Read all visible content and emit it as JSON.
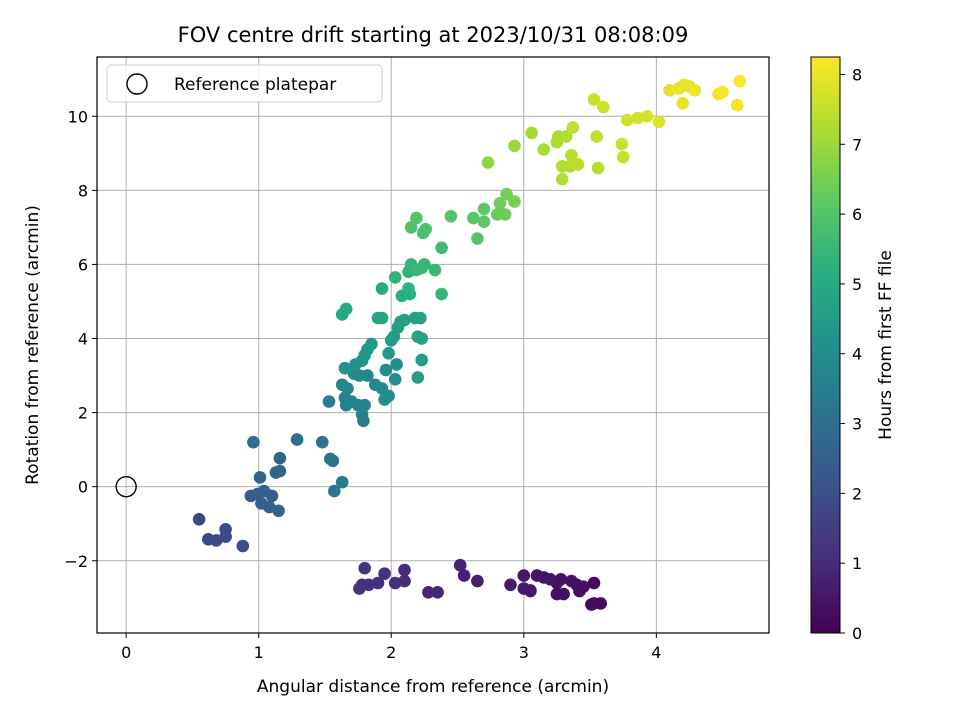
{
  "chart_data": {
    "type": "scatter",
    "title": "FOV centre drift starting at 2023/10/31 08:08:09",
    "xlabel": "Angular distance from reference (arcmin)",
    "ylabel": "Rotation from reference (arcmin)",
    "xlim": [
      -0.22,
      4.85
    ],
    "ylim": [
      -3.95,
      11.6
    ],
    "xticks": [
      0,
      1,
      2,
      3,
      4
    ],
    "yticks": [
      -2,
      0,
      2,
      4,
      6,
      8,
      10
    ],
    "xtick_labels": [
      "0",
      "1",
      "2",
      "3",
      "4"
    ],
    "ytick_labels": [
      "−2",
      "0",
      "2",
      "4",
      "6",
      "8",
      "10"
    ],
    "grid": true,
    "legend": {
      "placement": "top-left",
      "entries": [
        {
          "label": "Reference platepar",
          "marker": "open-circle"
        }
      ]
    },
    "reference_point": {
      "x": 0,
      "y": 0
    },
    "colorbar": {
      "label": "Hours from first FF file",
      "colormap": "viridis",
      "range": [
        0,
        8.25
      ],
      "ticks": [
        0,
        1,
        2,
        3,
        4,
        5,
        6,
        7,
        8
      ],
      "tick_labels": [
        "0",
        "1",
        "2",
        "3",
        "4",
        "5",
        "6",
        "7",
        "8"
      ]
    },
    "series": [
      {
        "points": [
          [
            3.53,
            -3.15,
            0.2
          ],
          [
            3.58,
            -3.15,
            0.2
          ],
          [
            3.51,
            -3.18,
            0.25
          ],
          [
            3.42,
            -2.82,
            0.3
          ],
          [
            3.4,
            -2.65,
            0.3
          ],
          [
            3.3,
            -2.9,
            0.35
          ],
          [
            3.25,
            -2.9,
            0.35
          ],
          [
            3.36,
            -2.55,
            0.35
          ],
          [
            3.28,
            -2.5,
            0.4
          ],
          [
            3.25,
            -2.6,
            0.4
          ],
          [
            3.2,
            -2.5,
            0.45
          ],
          [
            3.15,
            -2.45,
            0.45
          ],
          [
            3.1,
            -2.4,
            0.5
          ],
          [
            3.05,
            -2.8,
            0.5
          ],
          [
            3.0,
            -2.4,
            0.5
          ],
          [
            3.0,
            -2.75,
            0.55
          ],
          [
            3.05,
            -2.82,
            0.55
          ],
          [
            2.9,
            -2.65,
            0.6
          ],
          [
            3.53,
            -2.6,
            0.2
          ],
          [
            3.45,
            -2.7,
            0.3
          ],
          [
            2.65,
            -2.55,
            0.7
          ],
          [
            2.55,
            -2.4,
            0.75
          ],
          [
            2.52,
            -2.12,
            0.8
          ],
          [
            2.35,
            -2.85,
            0.9
          ],
          [
            2.28,
            -2.85,
            0.9
          ],
          [
            2.1,
            -2.25,
            1.0
          ],
          [
            2.1,
            -2.55,
            1.0
          ],
          [
            2.03,
            -2.6,
            1.05
          ],
          [
            1.95,
            -2.35,
            1.1
          ],
          [
            1.9,
            -2.6,
            1.1
          ],
          [
            1.83,
            -2.65,
            1.15
          ],
          [
            1.78,
            -2.65,
            1.2
          ],
          [
            1.76,
            -2.75,
            1.2
          ],
          [
            1.8,
            -2.2,
            1.25
          ],
          [
            0.55,
            -0.88,
            1.75
          ],
          [
            0.62,
            -1.42,
            1.8
          ],
          [
            0.68,
            -1.45,
            1.85
          ],
          [
            0.75,
            -1.35,
            1.9
          ],
          [
            0.75,
            -1.15,
            1.9
          ],
          [
            0.88,
            -1.6,
            1.95
          ],
          [
            0.94,
            -0.25,
            2.4
          ],
          [
            0.99,
            -0.2,
            2.45
          ],
          [
            1.02,
            -0.45,
            2.5
          ],
          [
            1.04,
            -0.12,
            2.5
          ],
          [
            1.08,
            -0.55,
            2.55
          ],
          [
            1.1,
            -0.25,
            2.55
          ],
          [
            1.13,
            0.38,
            2.6
          ],
          [
            1.15,
            -0.65,
            2.6
          ],
          [
            1.16,
            0.42,
            2.65
          ],
          [
            1.01,
            0.25,
            2.65
          ],
          [
            1.16,
            0.77,
            2.75
          ],
          [
            0.96,
            1.2,
            2.9
          ],
          [
            1.29,
            1.27,
            2.95
          ],
          [
            1.48,
            1.2,
            3.1
          ],
          [
            1.54,
            0.75,
            3.15
          ],
          [
            1.56,
            0.7,
            3.2
          ],
          [
            1.57,
            -0.12,
            3.3
          ],
          [
            1.63,
            0.12,
            3.4
          ],
          [
            1.53,
            2.3,
            3.5
          ],
          [
            1.65,
            2.4,
            3.55
          ],
          [
            1.66,
            2.2,
            3.6
          ],
          [
            1.7,
            2.3,
            3.65
          ],
          [
            1.75,
            2.2,
            3.6
          ],
          [
            1.78,
            1.95,
            3.55
          ],
          [
            1.79,
            1.78,
            3.5
          ],
          [
            1.8,
            2.2,
            3.7
          ],
          [
            1.63,
            2.75,
            3.7
          ],
          [
            1.67,
            2.65,
            3.75
          ],
          [
            1.72,
            3.05,
            3.8
          ],
          [
            1.76,
            3.0,
            3.85
          ],
          [
            1.82,
            3.0,
            3.85
          ],
          [
            1.88,
            2.75,
            3.9
          ],
          [
            1.93,
            2.65,
            3.9
          ],
          [
            1.95,
            2.35,
            3.95
          ],
          [
            1.98,
            2.45,
            4.0
          ],
          [
            2.03,
            2.9,
            4.05
          ],
          [
            1.96,
            3.15,
            4.05
          ],
          [
            2.04,
            3.3,
            4.1
          ],
          [
            1.65,
            3.2,
            4.15
          ],
          [
            1.73,
            3.3,
            4.2
          ],
          [
            1.78,
            3.4,
            4.25
          ],
          [
            1.8,
            3.55,
            4.3
          ],
          [
            1.82,
            3.7,
            4.35
          ],
          [
            1.85,
            3.85,
            4.4
          ],
          [
            1.98,
            3.6,
            4.4
          ],
          [
            2.0,
            3.95,
            4.45
          ],
          [
            2.02,
            4.05,
            4.5
          ],
          [
            2.05,
            4.3,
            4.55
          ],
          [
            2.1,
            4.5,
            4.6
          ],
          [
            2.07,
            4.45,
            4.65
          ],
          [
            2.18,
            4.55,
            4.7
          ],
          [
            2.2,
            4.05,
            4.75
          ],
          [
            2.23,
            4.0,
            4.7
          ],
          [
            2.23,
            3.42,
            4.6
          ],
          [
            2.2,
            2.95,
            4.5
          ],
          [
            2.22,
            4.55,
            4.75
          ],
          [
            1.93,
            4.55,
            4.85
          ],
          [
            1.9,
            4.55,
            4.85
          ],
          [
            1.63,
            4.65,
            4.9
          ],
          [
            1.66,
            4.8,
            4.95
          ],
          [
            1.93,
            5.35,
            5.0
          ],
          [
            2.08,
            5.15,
            5.1
          ],
          [
            2.14,
            5.2,
            5.2
          ],
          [
            2.13,
            5.35,
            5.25
          ],
          [
            2.03,
            5.65,
            5.3
          ],
          [
            2.13,
            5.8,
            5.35
          ],
          [
            2.15,
            6.0,
            5.4
          ],
          [
            2.23,
            5.9,
            5.45
          ],
          [
            2.25,
            6.0,
            5.45
          ],
          [
            2.19,
            5.85,
            5.5
          ],
          [
            2.33,
            5.85,
            5.5
          ],
          [
            2.38,
            5.2,
            5.4
          ],
          [
            2.38,
            6.45,
            5.6
          ],
          [
            2.24,
            6.85,
            5.8
          ],
          [
            2.26,
            6.95,
            5.85
          ],
          [
            2.15,
            7.0,
            5.9
          ],
          [
            2.19,
            7.25,
            5.95
          ],
          [
            2.45,
            7.3,
            6.0
          ],
          [
            2.65,
            6.7,
            6.05
          ],
          [
            2.62,
            7.25,
            6.1
          ],
          [
            2.7,
            7.15,
            6.15
          ],
          [
            2.7,
            7.5,
            6.2
          ],
          [
            2.8,
            7.35,
            6.3
          ],
          [
            2.86,
            7.35,
            6.35
          ],
          [
            2.82,
            7.65,
            6.4
          ],
          [
            2.87,
            7.9,
            6.45
          ],
          [
            2.93,
            7.7,
            6.5
          ],
          [
            2.73,
            8.75,
            6.85
          ],
          [
            2.93,
            9.2,
            7.0
          ],
          [
            3.06,
            9.55,
            7.1
          ],
          [
            3.15,
            9.1,
            7.15
          ],
          [
            3.25,
            9.3,
            7.2
          ],
          [
            3.26,
            9.45,
            7.25
          ],
          [
            3.32,
            9.45,
            7.25
          ],
          [
            3.29,
            8.65,
            7.3
          ],
          [
            3.29,
            8.3,
            7.3
          ],
          [
            3.35,
            8.65,
            7.3
          ],
          [
            3.36,
            8.95,
            7.35
          ],
          [
            3.37,
            8.75,
            7.4
          ],
          [
            3.41,
            8.7,
            7.4
          ],
          [
            3.37,
            9.7,
            7.45
          ],
          [
            3.56,
            8.6,
            7.35
          ],
          [
            3.55,
            9.45,
            7.5
          ],
          [
            3.53,
            10.45,
            7.6
          ],
          [
            3.6,
            10.25,
            7.65
          ],
          [
            3.74,
            9.25,
            7.6
          ],
          [
            3.75,
            8.9,
            7.55
          ],
          [
            3.78,
            9.9,
            7.65
          ],
          [
            3.86,
            9.95,
            7.7
          ],
          [
            3.93,
            10.0,
            7.75
          ],
          [
            4.02,
            9.85,
            7.8
          ],
          [
            4.1,
            10.7,
            7.9
          ],
          [
            4.17,
            10.75,
            7.95
          ],
          [
            4.2,
            10.35,
            7.95
          ],
          [
            4.21,
            10.85,
            8.0
          ],
          [
            4.25,
            10.8,
            8.0
          ],
          [
            4.29,
            10.7,
            8.05
          ],
          [
            4.47,
            10.6,
            8.1
          ],
          [
            4.5,
            10.65,
            8.15
          ],
          [
            4.61,
            10.3,
            8.15
          ],
          [
            4.63,
            10.95,
            8.2
          ]
        ]
      }
    ]
  }
}
